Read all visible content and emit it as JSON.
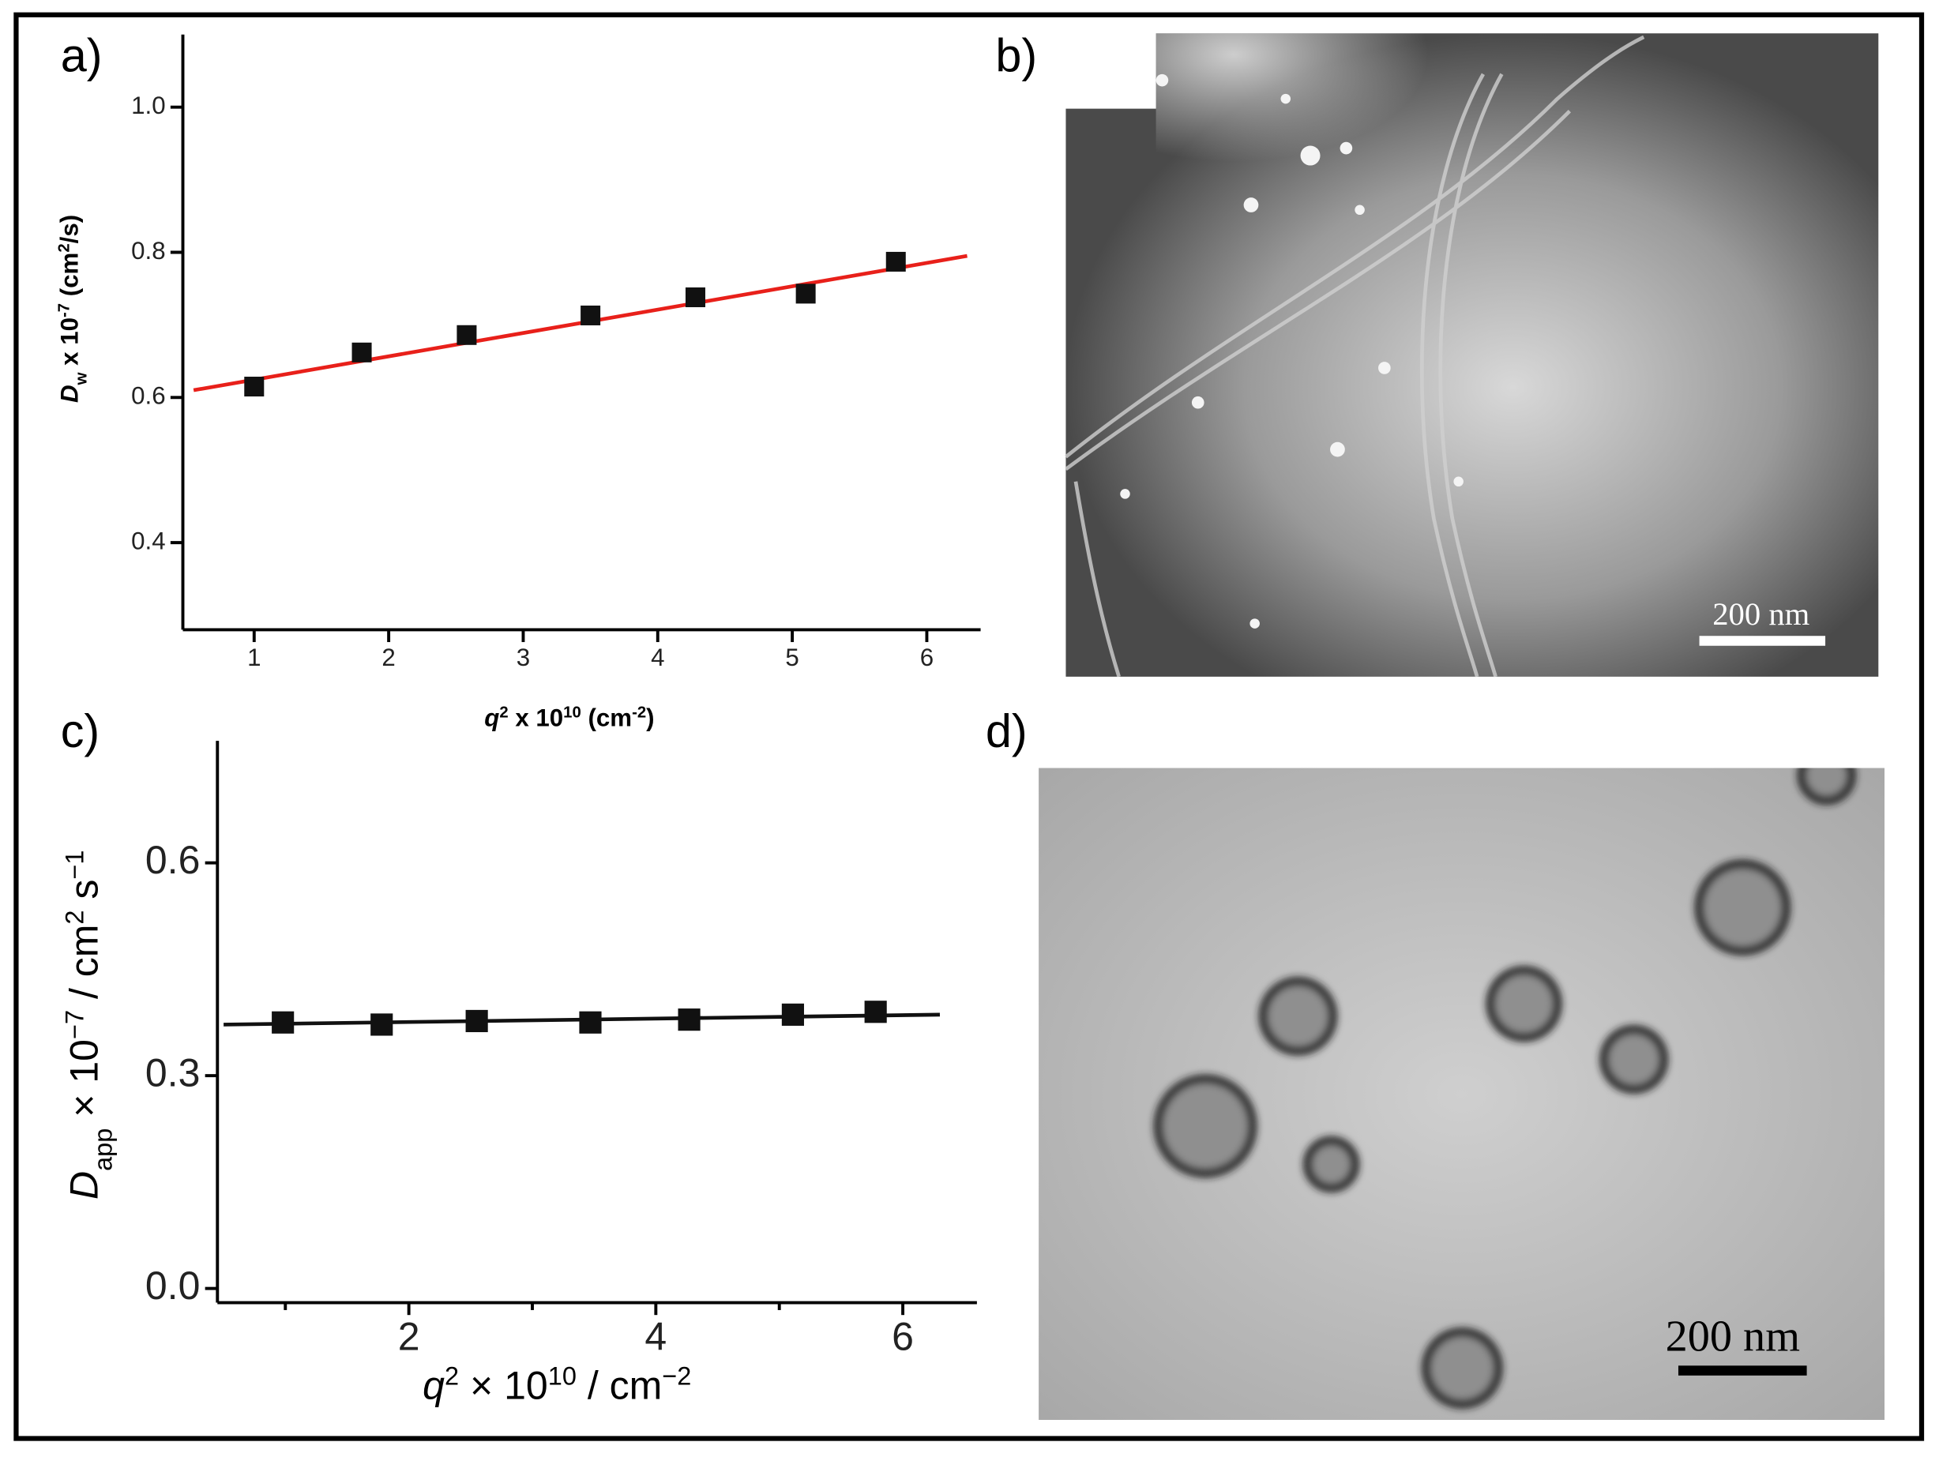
{
  "panel_labels": [
    "a)",
    "b)",
    "c)",
    "d)"
  ],
  "scale_bars": [
    "200 nm",
    "200 nm"
  ],
  "chart_data": [
    {
      "type": "scatter",
      "x": [
        1,
        1.8,
        2.58,
        3.5,
        4.28,
        5.1,
        5.77
      ],
      "values": [
        0.615,
        0.662,
        0.686,
        0.713,
        0.738,
        0.743,
        0.787
      ],
      "color": "#111111",
      "fit": {
        "x": [
          0.55,
          6.3
        ],
        "y": [
          0.61,
          0.795
        ],
        "color": "#e8201a"
      },
      "xlim": [
        0.47,
        6.4
      ],
      "ylim": [
        0.28,
        1.1
      ],
      "xticks": [
        1,
        2,
        3,
        4,
        5,
        6
      ],
      "yticks": [
        0.4,
        0.6,
        0.8,
        {
          "value": 1,
          "label": "1.0"
        }
      ],
      "xlabel": [
        "q",
        "2",
        " x 10",
        "10",
        " (cm",
        "-2",
        ")"
      ],
      "ylabel": [
        "D",
        "w",
        " x 10",
        "-7",
        " (cm",
        "2",
        "/s)"
      ]
    },
    {
      "type": "scatter",
      "x": [
        0.98,
        1.78,
        2.55,
        3.47,
        4.27,
        5.11,
        5.78
      ],
      "values": [
        0.375,
        0.372,
        0.377,
        0.375,
        0.379,
        0.386,
        0.39
      ],
      "color": "#111111",
      "fit": {
        "x": [
          0.5,
          6.3
        ],
        "y": [
          0.372,
          0.386
        ],
        "color": "#111111"
      },
      "xlim": [
        0.45,
        6.6
      ],
      "ylim": [
        -0.02,
        0.772
      ],
      "xticks": [
        2,
        4,
        6
      ],
      "minor_xticks": [
        1,
        3,
        5
      ],
      "yticks": [
        {
          "value": 0,
          "label": "0.0"
        },
        0.3,
        0.6
      ],
      "xlabel": [
        "q",
        "2",
        " × 10",
        "10",
        " / cm",
        "−2"
      ],
      "ylabel": [
        "D",
        "app",
        " × 10",
        "−7",
        " / cm",
        "2",
        " s",
        "−1"
      ]
    }
  ]
}
